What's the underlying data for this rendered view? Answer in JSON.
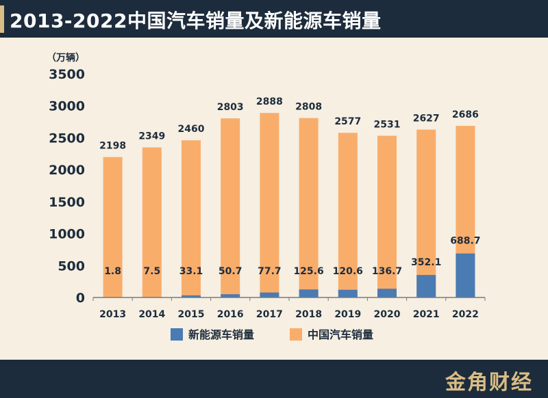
{
  "header": {
    "title": "2013-2022中国汽车销量及新能源车销量"
  },
  "footer": {
    "brand": "金角财经"
  },
  "colors": {
    "header_bg": "#1d2c3c",
    "accent": "#d9bd86",
    "bar_total": "#f9ad6b",
    "bar_nev": "#4a7bb2",
    "label_text": "#1d2c3c"
  },
  "chart_data": {
    "type": "bar",
    "title": "2013-2022中国汽车销量及新能源车销量",
    "unit": "（万辆）",
    "categories": [
      "2013",
      "2014",
      "2015",
      "2016",
      "2017",
      "2018",
      "2019",
      "2020",
      "2021",
      "2022"
    ],
    "series": [
      {
        "name": "新能源车销量",
        "values": [
          1.8,
          7.5,
          33.1,
          50.7,
          77.7,
          125.6,
          120.6,
          136.7,
          352.1,
          688.7
        ]
      },
      {
        "name": "中国汽车销量",
        "values": [
          2198,
          2349,
          2460,
          2803,
          2888,
          2808,
          2577,
          2531,
          2627,
          2686
        ]
      }
    ],
    "ylim": [
      0,
      3500
    ],
    "yticks": [
      0,
      500,
      1000,
      1500,
      2000,
      2500,
      3000,
      3500
    ],
    "grid": false,
    "legend": "bottom"
  }
}
